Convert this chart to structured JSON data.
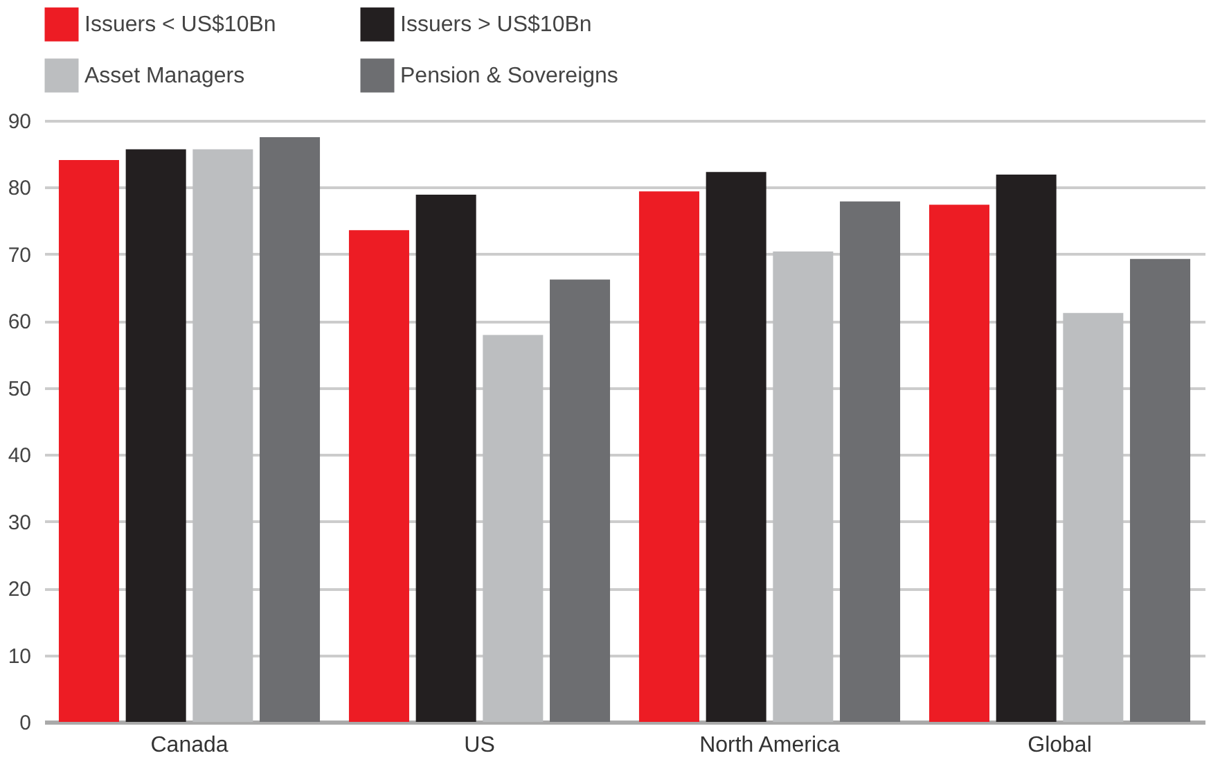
{
  "chart_data": {
    "type": "bar",
    "categories": [
      "Canada",
      "US",
      "North America",
      "Global"
    ],
    "series": [
      {
        "name": "Issuers < US$10Bn",
        "color": "#ed1c24",
        "values": [
          84.1,
          73.6,
          79.4,
          77.4
        ]
      },
      {
        "name": "Issuers > US$10Bn",
        "color": "#231f20",
        "values": [
          85.7,
          78.9,
          82.3,
          81.9
        ]
      },
      {
        "name": "Asset Managers",
        "color": "#bcbec0",
        "values": [
          85.7,
          57.9,
          70.4,
          61.2
        ]
      },
      {
        "name": "Pension & Sovereigns",
        "color": "#6d6e71",
        "values": [
          87.5,
          66.2,
          77.9,
          69.3
        ]
      }
    ],
    "ylim": [
      0,
      90
    ],
    "yticks": [
      0,
      10,
      20,
      30,
      40,
      50,
      60,
      70,
      80,
      90
    ],
    "grid": "y",
    "legend": "top"
  }
}
